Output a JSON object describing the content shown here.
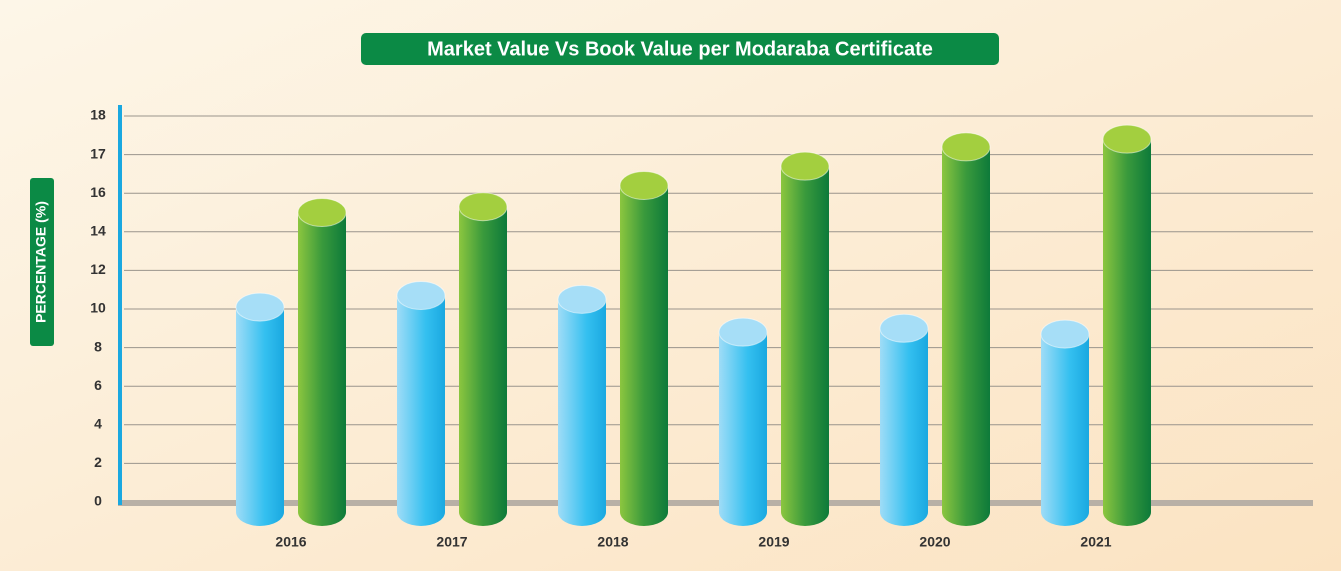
{
  "chart_data": {
    "type": "bar",
    "title": "Market Value Vs Book Value per Modaraba Certificate",
    "y_label": "PERCENTAGE (%)",
    "categories": [
      "2016",
      "2017",
      "2018",
      "2019",
      "2020",
      "2021"
    ],
    "series": [
      {
        "color": "#3fc3f0",
        "values": [
          10.1,
          10.7,
          10.5,
          8.8,
          9.0,
          8.7
        ]
      },
      {
        "color": "#3a9a3c",
        "values": [
          15.0,
          15.3,
          16.2,
          16.7,
          17.2,
          17.4
        ]
      }
    ],
    "ylim": [
      0,
      18
    ],
    "yticks": [
      0,
      2,
      4,
      6,
      8,
      10,
      12,
      14,
      16,
      17,
      18
    ],
    "grid": true
  }
}
